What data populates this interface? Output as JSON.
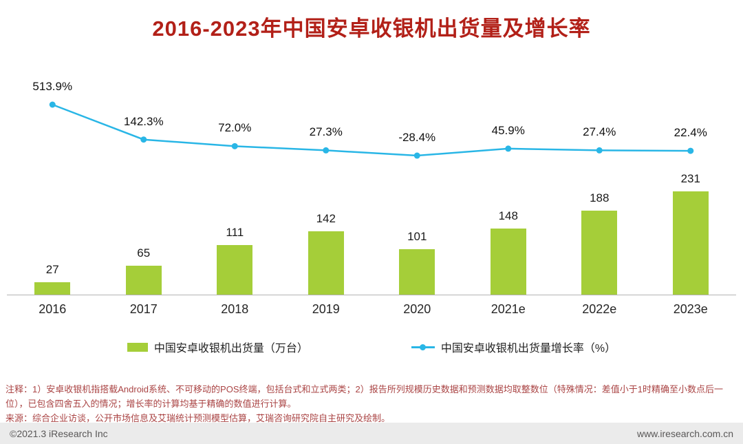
{
  "title": "2016-2023年中国安卓收银机出货量及增长率",
  "chart_data": {
    "type": "bar",
    "subtype": "bar+line combo",
    "title": "2016-2023年中国安卓收银机出货量及增长率",
    "categories": [
      "2016",
      "2017",
      "2018",
      "2019",
      "2020",
      "2021e",
      "2022e",
      "2023e"
    ],
    "series": [
      {
        "name": "中国安卓收银机出货量（万台）",
        "type": "bar",
        "values": [
          27,
          65,
          111,
          142,
          101,
          148,
          188,
          231
        ],
        "color": "#a5ce39"
      },
      {
        "name": "中国安卓收银机出货量增长率（%）",
        "type": "line",
        "values": [
          513.9,
          142.3,
          72.0,
          27.3,
          -28.4,
          45.9,
          27.4,
          22.4
        ],
        "color": "#29b6e6"
      }
    ],
    "value_labels": {
      "bar": [
        "27",
        "65",
        "111",
        "142",
        "101",
        "148",
        "188",
        "231"
      ],
      "line": [
        "513.9%",
        "142.3%",
        "72.0%",
        "27.3%",
        "-28.4%",
        "45.9%",
        "27.4%",
        "22.4%"
      ]
    },
    "xlabel": "",
    "ylabel": "",
    "bar_ylim": [
      0,
      260
    ],
    "line_ylim": [
      -100,
      600
    ],
    "grid": false,
    "legend_position": "bottom"
  },
  "legend": [
    {
      "label": "中国安卓收银机出货量（万台）"
    },
    {
      "label": "中国安卓收银机出货量增长率（%）"
    }
  ],
  "notes": {
    "annotation": "注释：1）安卓收银机指搭载Android系统、不可移动的POS终端，包括台式和立式两类；2）报告所列规模历史数据和预测数据均取整数位（特殊情况：差值小于1时精确至小数点后一位），已包含四舍五入的情况；增长率的计算均基于精确的数值进行计算。",
    "source": "来源：综合企业访谈，公开市场信息及艾瑞统计预测模型估算，艾瑞咨询研究院自主研究及绘制。"
  },
  "footer": {
    "left": "©2021.3 iResearch Inc",
    "right": "www.iresearch.com.cn"
  },
  "colors": {
    "bar": "#a5ce39",
    "line": "#29b6e6",
    "title": "#b22018",
    "notes": "#aa4444"
  }
}
